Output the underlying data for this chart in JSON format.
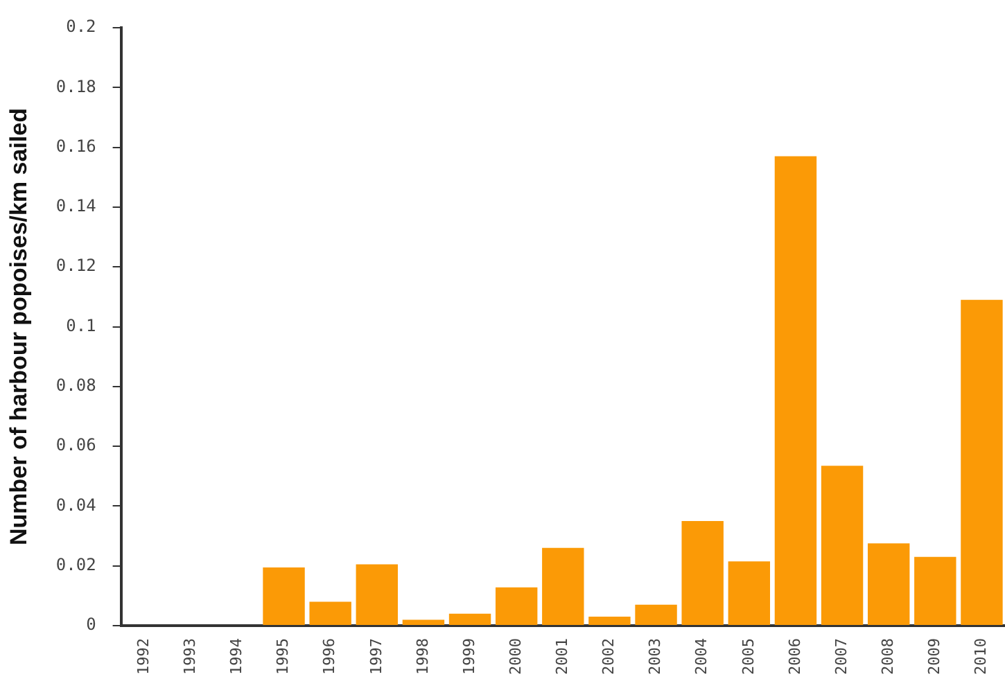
{
  "chart_data": {
    "type": "bar",
    "ylabel": "Number of harbour popoises/km sailed",
    "categories": [
      "1992",
      "1993",
      "1994",
      "1995",
      "1996",
      "1997",
      "1998",
      "1999",
      "2000",
      "2001",
      "2002",
      "2003",
      "2004",
      "2005",
      "2006",
      "2007",
      "2008",
      "2009",
      "2010"
    ],
    "values": [
      0,
      0,
      0,
      0.0195,
      0.008,
      0.0205,
      0.002,
      0.004,
      0.0128,
      0.026,
      0.003,
      0.007,
      0.035,
      0.0215,
      0.157,
      0.0535,
      0.0275,
      0.023,
      0.109
    ],
    "color": "#fb9a06",
    "ylim": [
      0,
      0.2
    ],
    "yticks": [
      0,
      0.02,
      0.04,
      0.06,
      0.08,
      0.1,
      0.12,
      0.14,
      0.16,
      0.18,
      0.2
    ],
    "grid": false,
    "legend": false
  }
}
